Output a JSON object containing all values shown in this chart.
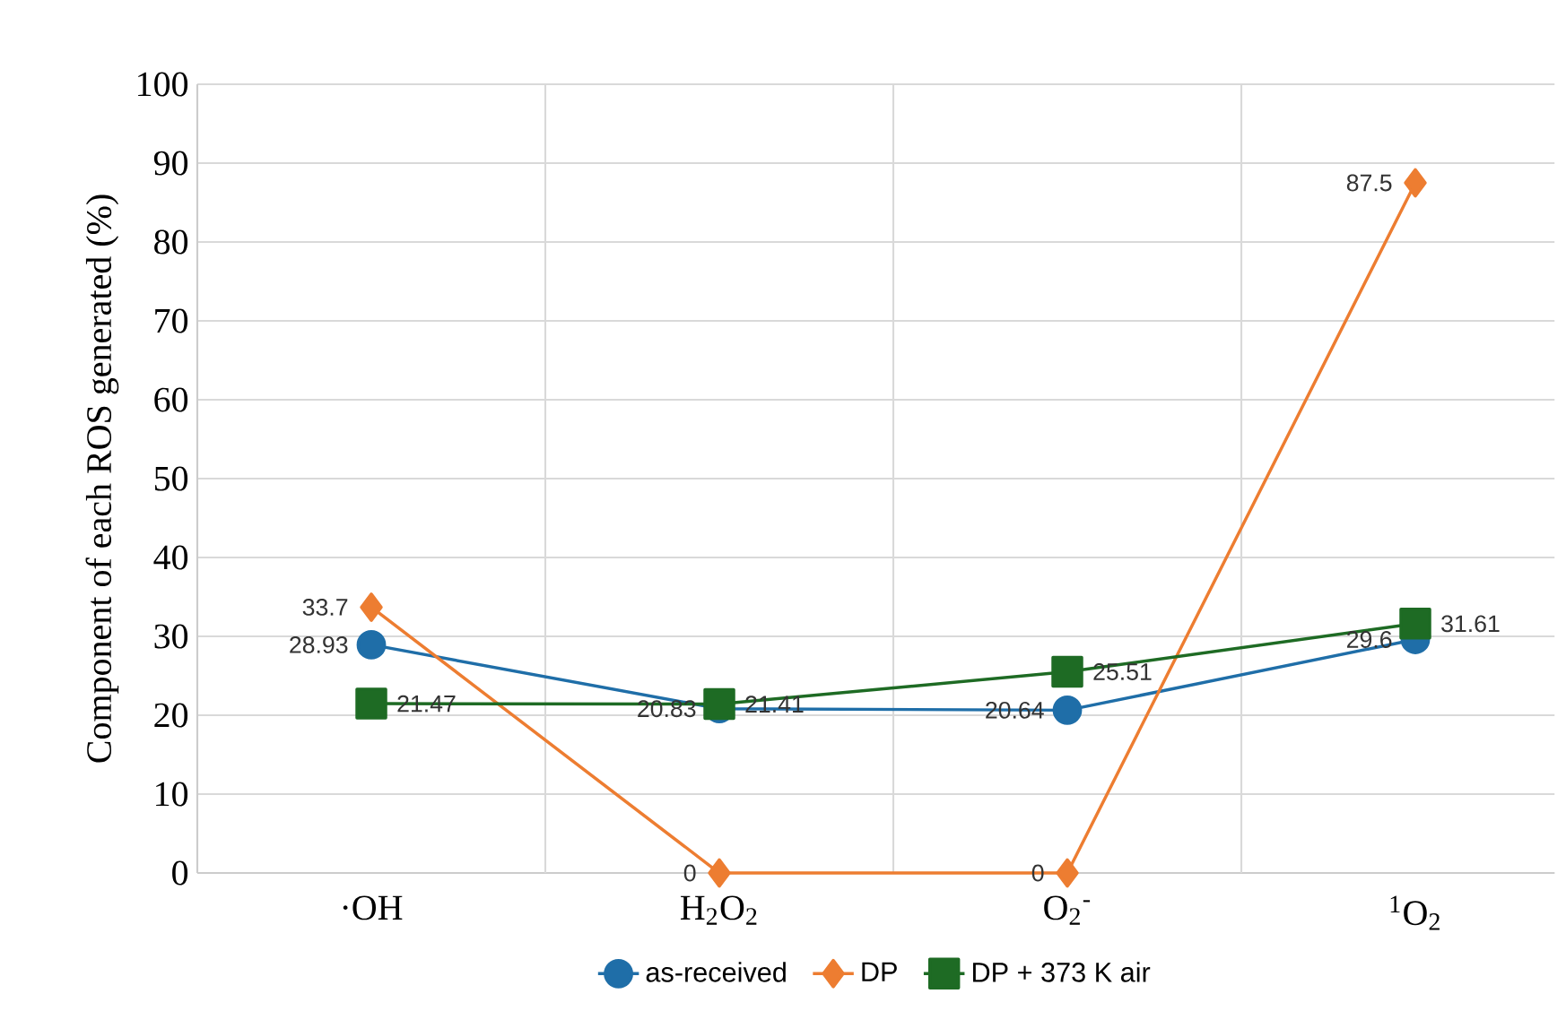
{
  "chart_data": {
    "type": "line",
    "ylabel": "Component of each ROS generated (%)",
    "categories": [
      "·OH",
      "H$_{2}$O$_{2}$",
      "O$_{2}$$^{-}$",
      "$^{1}$O$_{2}$"
    ],
    "series": [
      {
        "name": "as-received",
        "color": "#1f6ea8",
        "marker": "circle",
        "values": [
          28.93,
          20.83,
          20.64,
          29.6
        ]
      },
      {
        "name": "DP",
        "color": "#ed7d31",
        "marker": "diamond",
        "values": [
          33.7,
          0,
          0,
          87.5
        ]
      },
      {
        "name": "DP + 373 K air",
        "color": "#1e6b24",
        "marker": "square",
        "values": [
          21.47,
          21.41,
          25.51,
          31.61
        ]
      }
    ],
    "ylim": [
      0,
      100
    ],
    "yticks": [
      0,
      10,
      20,
      30,
      40,
      50,
      60,
      70,
      80,
      90,
      100
    ],
    "grid": true,
    "legend": "bottom",
    "data_labels": true
  }
}
